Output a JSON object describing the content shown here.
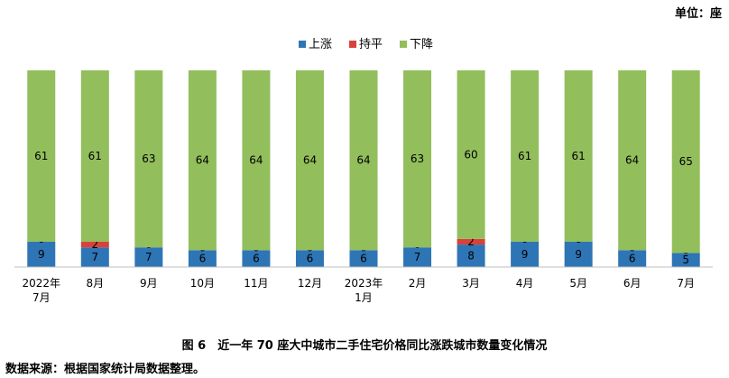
{
  "unit_label": "单位：座",
  "caption": "图 6　近一年 70 座大中城市二手住宅价格同比涨跌城市数量变化情况",
  "source": "数据来源：根据国家统计局数据整理。",
  "chart_data": {
    "type": "bar",
    "stacked": true,
    "categories": [
      "2022年\n7月",
      "8月",
      "9月",
      "10月",
      "11月",
      "12月",
      "2023年\n1月",
      "2月",
      "3月",
      "4月",
      "5月",
      "6月",
      "7月"
    ],
    "series": [
      {
        "name": "上涨",
        "color": "#2E75B6",
        "values": [
          9,
          7,
          7,
          6,
          6,
          6,
          6,
          7,
          8,
          9,
          9,
          6,
          5
        ]
      },
      {
        "name": "持平",
        "color": "#D9413B",
        "values": [
          0,
          2,
          0,
          0,
          0,
          0,
          0,
          0,
          2,
          0,
          0,
          0,
          0
        ]
      },
      {
        "name": "下降",
        "color": "#92BE5C",
        "values": [
          61,
          61,
          63,
          64,
          64,
          64,
          64,
          63,
          60,
          61,
          61,
          64,
          65
        ]
      }
    ],
    "ylim": [
      0,
      70
    ],
    "legend": "top-center",
    "grid": false
  }
}
